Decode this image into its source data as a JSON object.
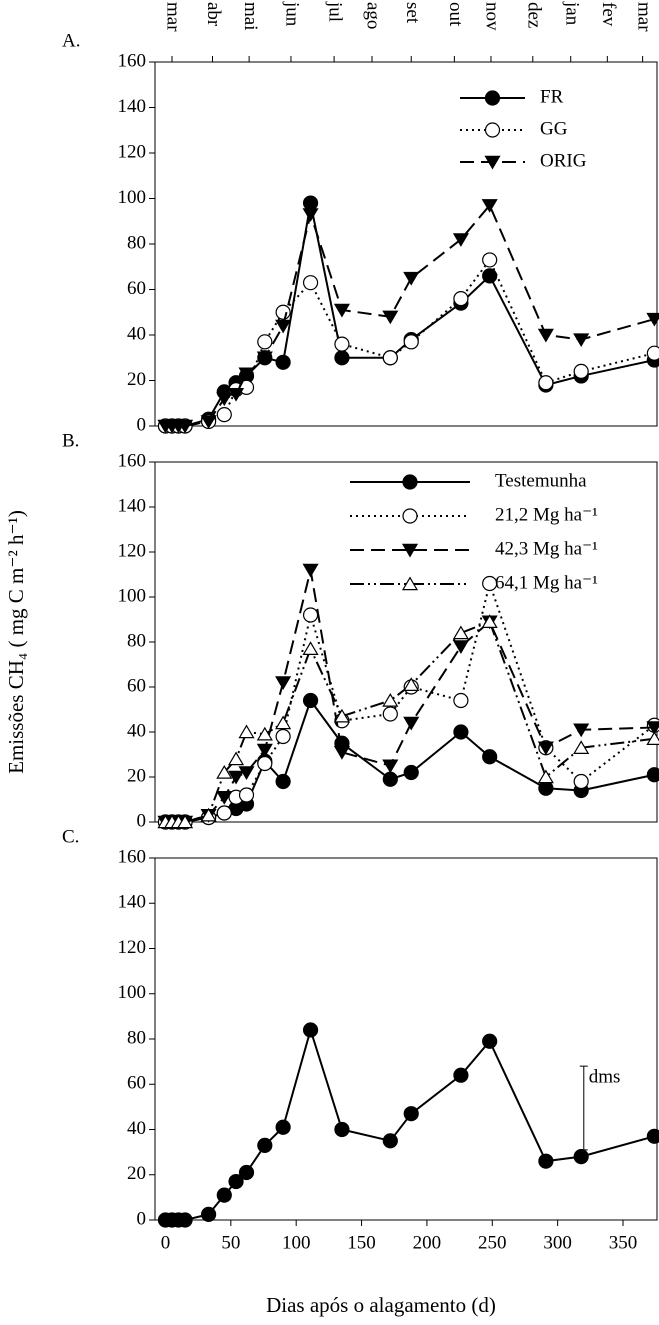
{
  "chart_data": [
    {
      "type": "line",
      "panel_label": "A.",
      "top_ticks": [
        {
          "value": 5,
          "label": "mar"
        },
        {
          "value": 36,
          "label": "abr"
        },
        {
          "value": 64,
          "label": "mai"
        },
        {
          "value": 96,
          "label": "jun"
        },
        {
          "value": 129,
          "label": "jul"
        },
        {
          "value": 158,
          "label": "ago"
        },
        {
          "value": 188,
          "label": "set"
        },
        {
          "value": 221,
          "label": "out"
        },
        {
          "value": 249,
          "label": "nov"
        },
        {
          "value": 281,
          "label": "dez"
        },
        {
          "value": 310,
          "label": "jan"
        },
        {
          "value": 338,
          "label": "fev"
        },
        {
          "value": 365,
          "label": "mar"
        }
      ],
      "x": [
        0,
        5,
        10,
        15,
        33,
        45,
        54,
        62,
        76,
        90,
        111,
        135,
        172,
        188,
        226,
        248,
        291,
        318,
        374
      ],
      "xlim": [
        -8,
        376
      ],
      "ylim": [
        0,
        160
      ],
      "yticks": [
        0,
        20,
        40,
        60,
        80,
        100,
        120,
        140,
        160
      ],
      "series": [
        {
          "name": "FR",
          "color": "#000000",
          "marker": "circle-filled",
          "dash": "solid",
          "values": [
            0,
            0,
            0,
            0,
            3,
            15,
            19,
            22,
            30,
            28,
            98,
            30,
            30,
            38,
            54,
            66,
            18,
            22,
            29
          ]
        },
        {
          "name": "GG",
          "color": "#000000",
          "marker": "circle-open",
          "dash": "dotted",
          "values": [
            0,
            0,
            0,
            0,
            2,
            5,
            16,
            17,
            37,
            50,
            63,
            36,
            30,
            37,
            56,
            73,
            19,
            24,
            32
          ]
        },
        {
          "name": "ORIG",
          "color": "#000000",
          "marker": "triangle-down-filled",
          "dash": "dashed",
          "values": [
            0,
            0,
            0,
            0,
            2,
            12,
            14,
            23,
            30,
            44,
            93,
            51,
            48,
            65,
            82,
            97,
            40,
            38,
            47
          ]
        }
      ]
    },
    {
      "type": "line",
      "panel_label": "B.",
      "ylabel": "Emissões CH₄ ( mg C m⁻² h⁻¹)",
      "x": [
        0,
        5,
        10,
        15,
        33,
        45,
        54,
        62,
        76,
        90,
        111,
        135,
        172,
        188,
        226,
        248,
        291,
        318,
        374
      ],
      "xlim": [
        -8,
        376
      ],
      "ylim": [
        0,
        160
      ],
      "yticks": [
        0,
        20,
        40,
        60,
        80,
        100,
        120,
        140,
        160
      ],
      "series": [
        {
          "name": "Testemunha",
          "color": "#000000",
          "marker": "circle-filled",
          "dash": "solid",
          "values": [
            0,
            0,
            0,
            0,
            2,
            4,
            6,
            8,
            27,
            18,
            54,
            35,
            19,
            22,
            40,
            29,
            15,
            14,
            21
          ]
        },
        {
          "name": "21,2 Mg ha⁻¹",
          "color": "#000000",
          "marker": "circle-open",
          "dash": "dotted",
          "values": [
            0,
            0,
            0,
            0,
            2,
            4,
            11,
            12,
            26,
            38,
            92,
            45,
            48,
            60,
            54,
            106,
            33,
            18,
            43
          ]
        },
        {
          "name": "42,3 Mg ha⁻¹",
          "color": "#000000",
          "marker": "triangle-down-filled",
          "dash": "dashed",
          "values": [
            0,
            0,
            0,
            0,
            3,
            11,
            20,
            22,
            32,
            62,
            112,
            31,
            25,
            44,
            78,
            89,
            33,
            41,
            42
          ]
        },
        {
          "name": "64,1 Mg ha⁻¹",
          "color": "#000000",
          "marker": "triangle-up-open",
          "dash": "dashdotdot",
          "values": [
            0,
            0,
            0,
            0,
            3,
            22,
            28,
            40,
            39,
            44,
            77,
            47,
            54,
            61,
            84,
            89,
            20,
            33,
            37
          ]
        }
      ]
    },
    {
      "type": "line",
      "panel_label": "C.",
      "xlabel": "Dias após o alagamento (d)",
      "x": [
        0,
        5,
        10,
        15,
        33,
        45,
        54,
        62,
        76,
        90,
        111,
        135,
        172,
        188,
        226,
        248,
        291,
        318,
        374
      ],
      "xlim": [
        -8,
        376
      ],
      "xticks": [
        0,
        50,
        100,
        150,
        200,
        250,
        300,
        350
      ],
      "ylim": [
        0,
        160
      ],
      "yticks": [
        0,
        20,
        40,
        60,
        80,
        100,
        120,
        140,
        160
      ],
      "dms": {
        "label": "dms",
        "x": 320,
        "low": 31,
        "high": 68
      },
      "series": [
        {
          "color": "#000000",
          "marker": "circle-filled",
          "dash": "solid",
          "values": [
            0,
            0,
            0,
            0,
            2.5,
            11,
            17,
            21,
            33,
            41,
            84,
            40,
            35,
            47,
            64,
            79,
            26,
            28,
            37
          ]
        }
      ]
    }
  ]
}
